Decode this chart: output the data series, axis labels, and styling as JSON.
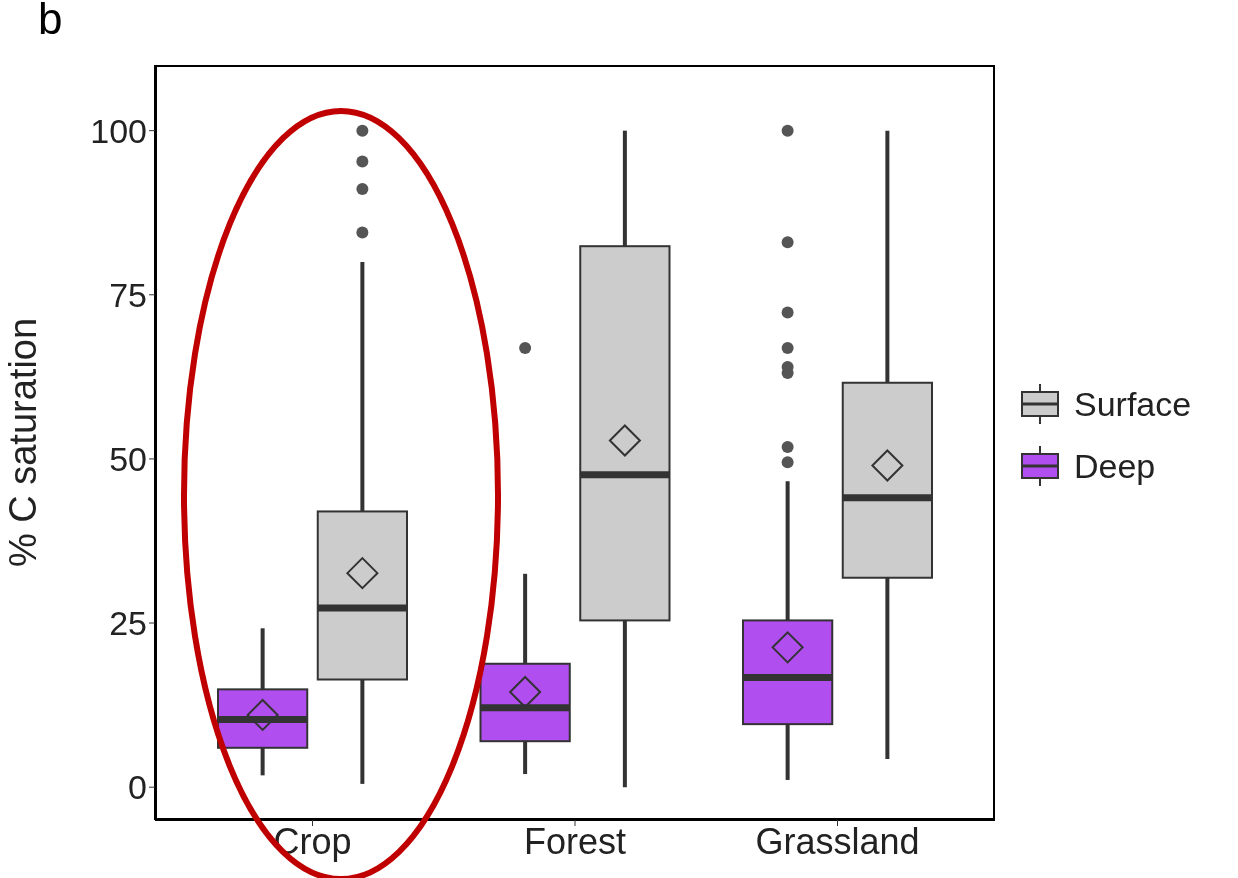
{
  "chart_data": {
    "type": "box",
    "ylabel": "% C saturation",
    "annotations": [
      "b"
    ],
    "categories": [
      "Crop",
      "Forest",
      "Grassland"
    ],
    "ylim": [
      -5,
      110
    ],
    "yticks": [
      0,
      25,
      50,
      75,
      100
    ],
    "legend": "right",
    "series": [
      {
        "name": "Surface",
        "color": "#cccccc",
        "boxes": [
          {
            "low": 0.5,
            "q1": 16.4,
            "median": 27.3,
            "q3": 42,
            "high": 80,
            "mean": 32.6,
            "outliers": [
              100,
              95.3,
              91.1,
              84.5
            ]
          },
          {
            "low": 0,
            "q1": 25.4,
            "median": 47.6,
            "q3": 82.4,
            "high": 100,
            "mean": 52.8
          },
          {
            "low": 4.3,
            "q1": 31.9,
            "median": 44.1,
            "q3": 61.6,
            "high": 100,
            "mean": 49
          }
        ]
      },
      {
        "name": "Deep",
        "color": "#b04ef0",
        "boxes": [
          {
            "low": 1.8,
            "q1": 6,
            "median": 10.3,
            "q3": 14.9,
            "high": 24.2,
            "mean": 11
          },
          {
            "low": 2,
            "q1": 7,
            "median": 12.1,
            "q3": 18.8,
            "high": 32.5,
            "mean": 14.5,
            "outliers": [
              66.9
            ]
          },
          {
            "low": 1.1,
            "q1": 9.6,
            "median": 16.7,
            "q3": 25.4,
            "high": 46.6,
            "mean": 21.3,
            "outliers": [
              100,
              83,
              72.3,
              66.9,
              64,
              63.1,
              51.8,
              49.5
            ]
          }
        ]
      }
    ]
  }
}
